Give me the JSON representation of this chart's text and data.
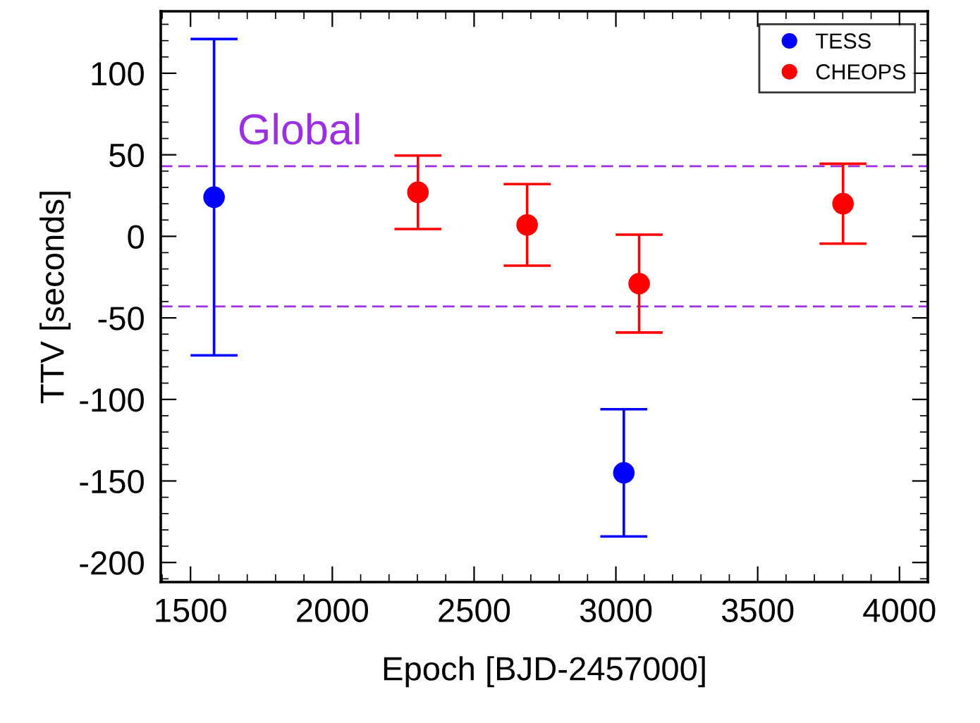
{
  "chart_data": {
    "type": "scatter",
    "xlabel": "Epoch [BJD-2457000]",
    "ylabel": "TTV [seconds]",
    "xlim": [
      1395,
      4100
    ],
    "ylim": [
      -212,
      138
    ],
    "xticks": [
      1500,
      2000,
      2500,
      3000,
      3500,
      4000
    ],
    "yticks": [
      -200,
      -150,
      -100,
      -50,
      0,
      50,
      100
    ],
    "series": [
      {
        "name": "TESS",
        "color": "#0000ff",
        "x": [
          1583,
          3028
        ],
        "values": [
          24,
          -145
        ],
        "errors": [
          97,
          39
        ]
      },
      {
        "name": "CHEOPS",
        "color": "#ff0000",
        "x": [
          2302,
          2687,
          3082,
          3801
        ],
        "values": [
          27,
          7,
          -29,
          20
        ],
        "errors": [
          22.5,
          25,
          30,
          24.5
        ]
      }
    ],
    "ref_lines": [
      {
        "axis": "y",
        "value": 43,
        "label": "Global",
        "color": "#9b30e0",
        "line_style": "dashed"
      },
      {
        "axis": "y",
        "value": -43,
        "color": "#9b30e0",
        "line_style": "dashed"
      }
    ],
    "marker": "circle",
    "legend": "top right",
    "grid": false
  }
}
